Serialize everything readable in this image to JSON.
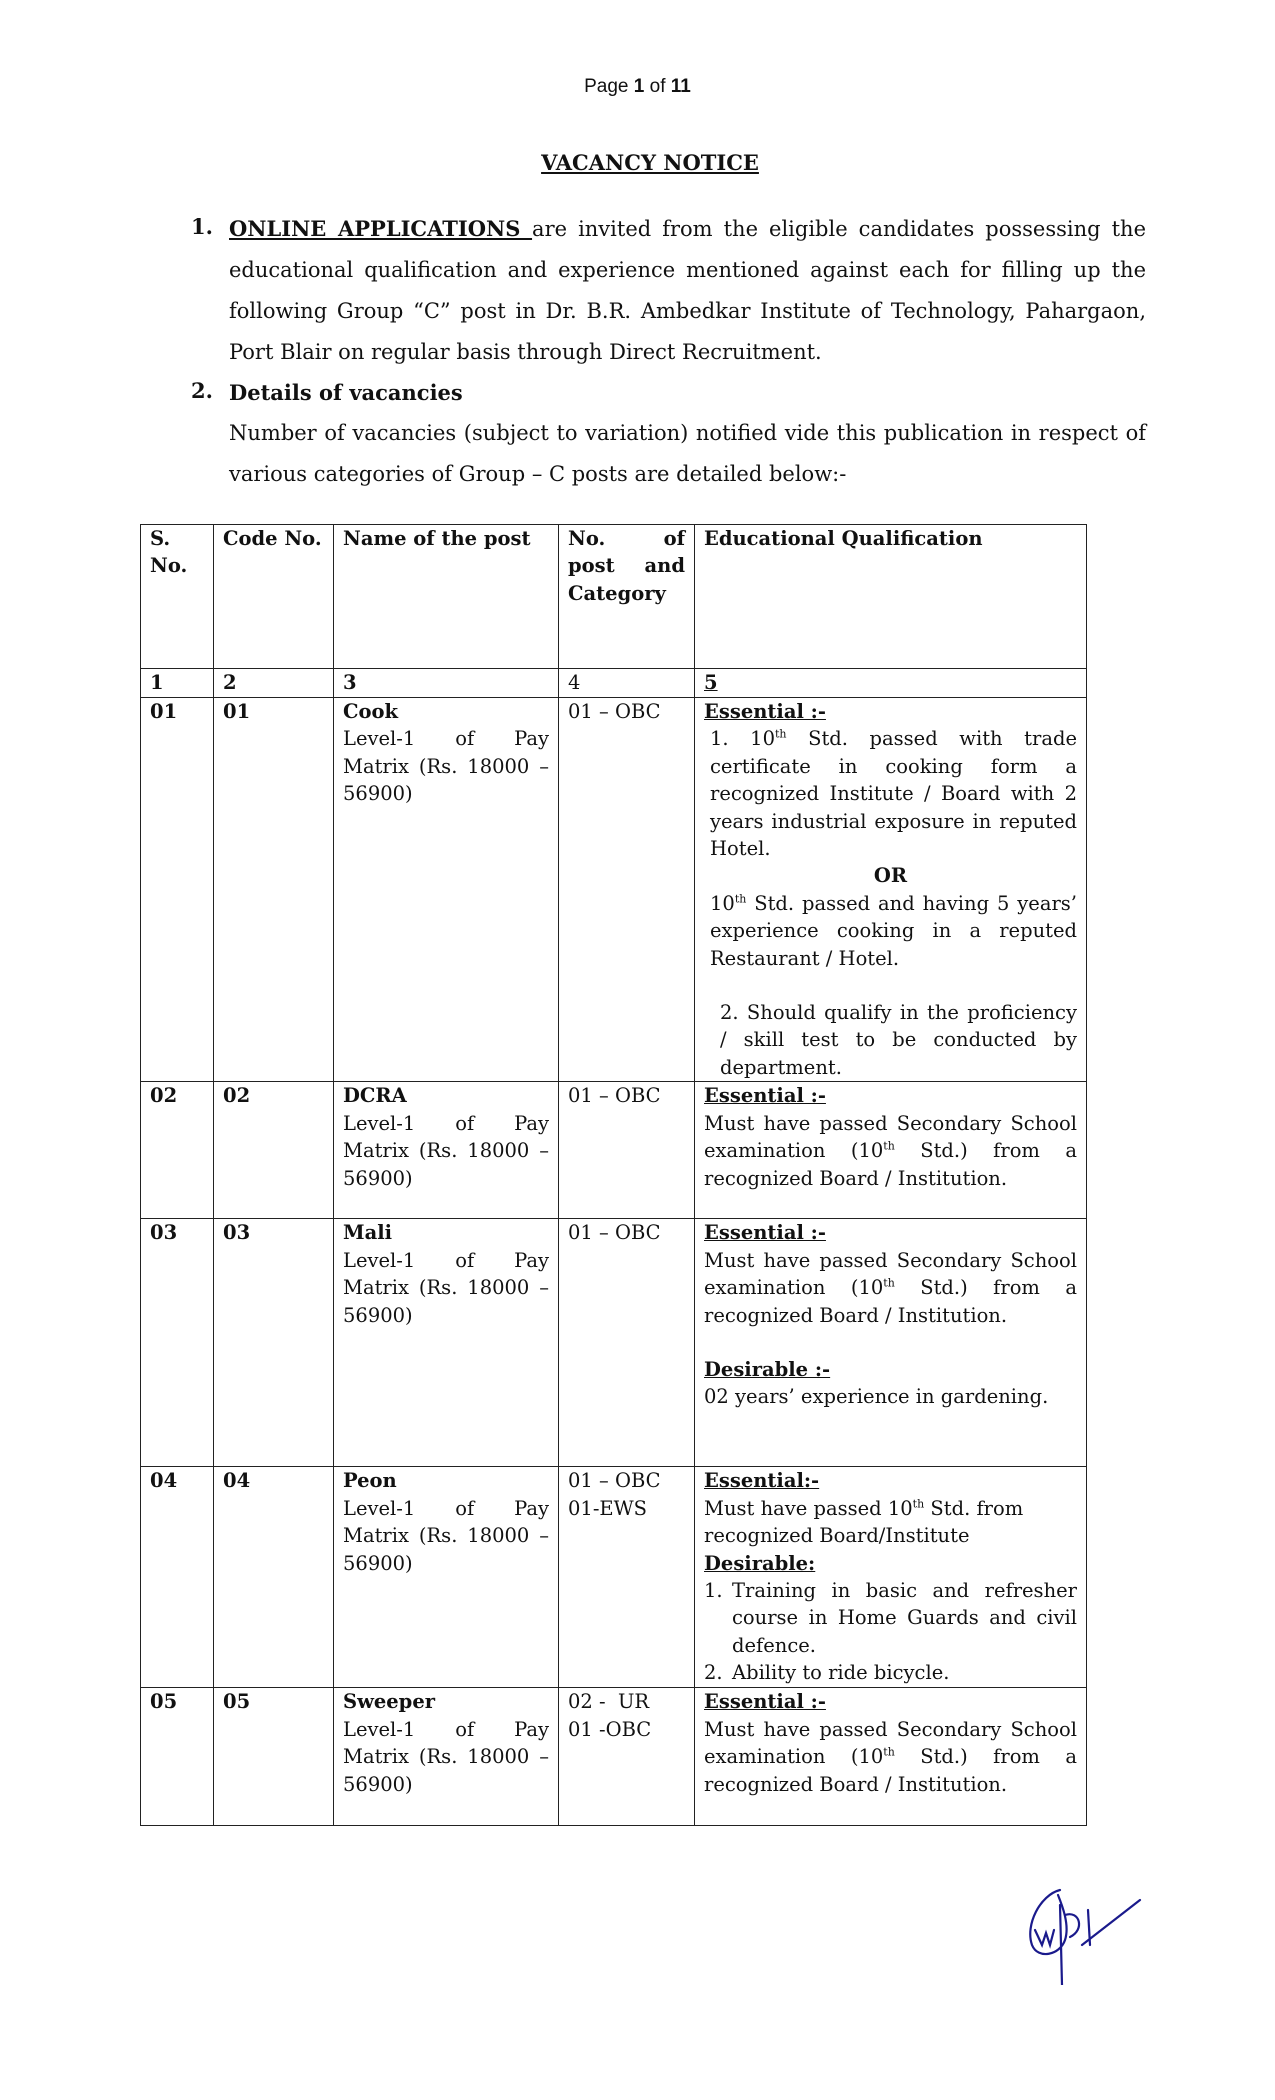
{
  "page_indicator": {
    "prefix": "Page ",
    "current": "1",
    "of": " of ",
    "total": "11"
  },
  "title": "VACANCY NOTICE",
  "section1": {
    "number": "1.",
    "lead": "ONLINE APPLICATIONS ",
    "text": "are invited from the eligible candidates possessing the educational qualification and experience mentioned against each for filling up the following Group “C” post in Dr. B.R. Ambedkar Institute of Technology, Pahargaon, Port Blair on regular basis through Direct Recruitment."
  },
  "section2": {
    "number": "2.",
    "heading": "Details of vacancies",
    "text": "Number of vacancies (subject to variation) notified vide this publication in respect of various categories of Group – C posts are detailed below:-"
  },
  "table": {
    "headers": [
      "S. No.",
      "Code No.",
      "Name of the post",
      "No. of post and Category",
      "Educational Qualification"
    ],
    "col_numbers": [
      "1",
      "2",
      "3",
      "4",
      "5"
    ],
    "pay": "Level-1 of Pay Matrix (Rs. 18000 – 56900)",
    "rows": [
      {
        "sno": "01",
        "code": "01",
        "post": "Cook",
        "category": [
          "01 – OBC"
        ],
        "essential_label": "Essential :-",
        "q1a": "1.  10",
        "q1b": "th",
        "q1c": " Std. passed with trade certificate in cooking form a recognized Institute / Board with 2 years industrial exposure in reputed Hotel.",
        "or": "OR",
        "q2a": "10",
        "q2b": "th",
        "q2c": " Std. passed and having 5 years’ experience cooking in a reputed Restaurant / Hotel.",
        "q3": "2.  Should qualify in the proficiency / skill test to be conducted by department."
      },
      {
        "sno": "02",
        "code": "02",
        "post": "DCRA",
        "category": [
          "01 – OBC"
        ],
        "essential_label": "Essential :-",
        "qa": "Must have passed Secondary School examination (10",
        "qb": "th",
        "qc": " Std.) from a recognized Board / Institution."
      },
      {
        "sno": "03",
        "code": "03",
        "post": "Mali",
        "category": [
          "01 – OBC"
        ],
        "essential_label": "Essential :-",
        "qa": "Must have passed Secondary School examination (10",
        "qb": "th",
        "qc": " Std.) from a recognized Board / Institution.",
        "desirable_label": "Desirable :-",
        "desirable": "02 years’ experience in gardening."
      },
      {
        "sno": "04",
        "code": "04",
        "post": "Peon",
        "category": [
          "01 – OBC",
          "01-EWS"
        ],
        "essential_label": "Essential:-",
        "qa": "Must have passed 10",
        "qb": "th",
        "qc": " Std. from recognized Board/Institute",
        "desirable_label": "Desirable:",
        "d1": "Training in basic and refresher course in Home Guards and civil defence.",
        "d2": "Ability to ride bicycle.",
        "d1n": "1.",
        "d2n": "2."
      },
      {
        "sno": "05",
        "code": "05",
        "post": "Sweeper",
        "category": [
          "02 -  UR",
          "01 -OBC"
        ],
        "essential_label": "Essential :-",
        "qa": "Must have passed Secondary School examination (10",
        "qb": "th",
        "qc": " Std.) from a recognized Board / Institution."
      }
    ]
  },
  "colors": {
    "text": "#111111",
    "signature": "#1a1a8c"
  }
}
